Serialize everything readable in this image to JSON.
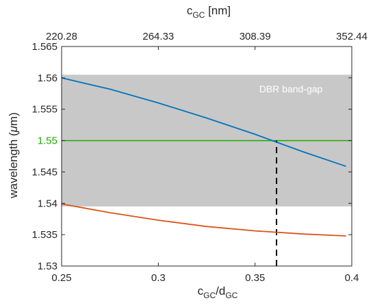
{
  "chart_data": {
    "type": "line",
    "xlabel": {
      "main": "c",
      "sub1": "GC",
      "mid": "/d",
      "sub2": "GC"
    },
    "top_xlabel": {
      "main": "c",
      "sub": "GC",
      "rest": " [nm]"
    },
    "ylabel_text": "wavelength (",
    "ylabel_mu": "μ",
    "ylabel_rest": "m)",
    "xlim": [
      0.25,
      0.4
    ],
    "ylim": [
      1.53,
      1.565
    ],
    "x_ticks": [
      0.25,
      0.3,
      0.35,
      0.4
    ],
    "x_tick_labels": [
      "0.25",
      "0.3",
      "0.35",
      "0.4"
    ],
    "top_tick_labels": [
      "220.28",
      "264.33",
      "308.39",
      "352.44"
    ],
    "y_ticks": [
      1.53,
      1.535,
      1.54,
      1.545,
      1.55,
      1.555,
      1.56,
      1.565
    ],
    "y_tick_labels": [
      "1.53",
      "1.535",
      "1.54",
      "1.545",
      "1.55",
      "1.555",
      "1.56",
      "1.565"
    ],
    "highlight_tick_label": "1.55",
    "highlight_tick_color": "#1faa00",
    "band": {
      "y_min": 1.5395,
      "y_max": 1.5605,
      "label": "DBR band-gap",
      "color": "#c8c8c8"
    },
    "hline": {
      "y": 1.55,
      "color": "#1faa00"
    },
    "vline": {
      "x": 0.3611,
      "y_from": 1.53,
      "y_to": 1.55,
      "color": "#000000"
    },
    "series": [
      {
        "color": "#0072bd",
        "x": [
          0.25,
          0.275,
          0.3,
          0.325,
          0.35,
          0.375,
          0.397
        ],
        "y": [
          1.56,
          1.5582,
          1.556,
          1.5536,
          1.551,
          1.5482,
          1.5459
        ]
      },
      {
        "color": "#d95319",
        "x": [
          0.25,
          0.275,
          0.3,
          0.325,
          0.35,
          0.375,
          0.397
        ],
        "y": [
          1.5399,
          1.5385,
          1.5373,
          1.5363,
          1.5356,
          1.5351,
          1.5348
        ]
      }
    ],
    "grid": false,
    "legend": "none"
  }
}
